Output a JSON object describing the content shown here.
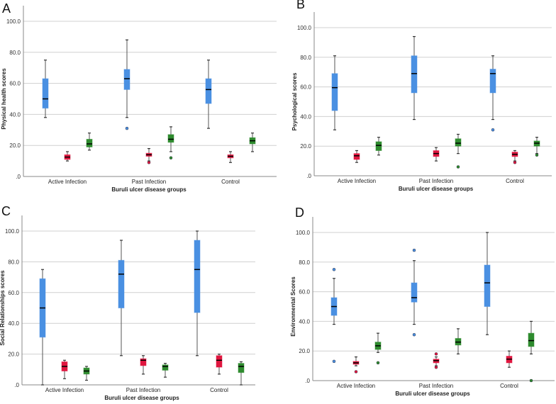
{
  "chart_data": [
    {
      "type": "box",
      "panel": "A",
      "ylabel": "Physical health scores",
      "xlabel": "Buruli ulcer disease groups",
      "ylim": [
        0,
        100
      ],
      "yticks": [
        ".0",
        "20.0",
        "40.0",
        "60.0",
        "80.0",
        "100.0"
      ],
      "grid": true,
      "categories": [
        "Active Infection",
        "Past Infection",
        "Control"
      ],
      "series_colors": [
        "#4a90e2",
        "#e0163f",
        "#2e8b2e"
      ],
      "groups": [
        [
          {
            "min": 38,
            "q1": 44,
            "median": 50,
            "q3": 63,
            "max": 75,
            "outliers": []
          },
          {
            "min": 10,
            "q1": 11,
            "median": 12.5,
            "q3": 14,
            "max": 16,
            "outliers": []
          },
          {
            "min": 17,
            "q1": 19,
            "median": 21,
            "q3": 24,
            "max": 28,
            "outliers": []
          }
        ],
        [
          {
            "min": 38,
            "q1": 56,
            "median": 63,
            "q3": 69,
            "max": 88,
            "outliers": [
              31
            ]
          },
          {
            "min": 10,
            "q1": 13,
            "median": 14,
            "q3": 15,
            "max": 18,
            "outliers": [
              9
            ]
          },
          {
            "min": 16,
            "q1": 22,
            "median": 24,
            "q3": 27,
            "max": 32,
            "outliers": [
              12
            ]
          }
        ],
        [
          {
            "min": 31,
            "q1": 47,
            "median": 56,
            "q3": 63,
            "max": 75,
            "outliers": []
          },
          {
            "min": 9,
            "q1": 12,
            "median": 13,
            "q3": 14,
            "max": 16,
            "outliers": []
          },
          {
            "min": 16,
            "q1": 21,
            "median": 23,
            "q3": 25,
            "max": 28,
            "outliers": []
          }
        ]
      ]
    },
    {
      "type": "box",
      "panel": "B",
      "ylabel": "Psychological scores",
      "xlabel": "Buruli ulcer disease groups",
      "ylim": [
        0,
        100
      ],
      "yticks": [
        ".0",
        "20.0",
        "40.0",
        "60.0",
        "80.0",
        "100.0"
      ],
      "grid": true,
      "categories": [
        "Active Infection",
        "Past Infection",
        "Control"
      ],
      "series_colors": [
        "#4a90e2",
        "#e0163f",
        "#2e8b2e"
      ],
      "groups": [
        [
          {
            "min": 31,
            "q1": 44,
            "median": 59.5,
            "q3": 69,
            "max": 81,
            "outliers": []
          },
          {
            "min": 9,
            "q1": 11,
            "median": 13.5,
            "q3": 15,
            "max": 17,
            "outliers": []
          },
          {
            "min": 14,
            "q1": 17,
            "median": 20.5,
            "q3": 23,
            "max": 26,
            "outliers": []
          }
        ],
        [
          {
            "min": 38,
            "q1": 56,
            "median": 69,
            "q3": 81,
            "max": 94,
            "outliers": []
          },
          {
            "min": 10,
            "q1": 13,
            "median": 15,
            "q3": 17,
            "max": 19,
            "outliers": []
          },
          {
            "min": 15,
            "q1": 20,
            "median": 22,
            "q3": 25,
            "max": 28,
            "outliers": [
              6
            ]
          }
        ],
        [
          {
            "min": 38,
            "q1": 56,
            "median": 69,
            "q3": 72,
            "max": 81,
            "outliers": [
              31
            ]
          },
          {
            "min": 10,
            "q1": 13,
            "median": 14.5,
            "q3": 16,
            "max": 17,
            "outliers": [
              9
            ]
          },
          {
            "min": 15,
            "q1": 20,
            "median": 22,
            "q3": 23.5,
            "max": 26,
            "outliers": [
              14
            ]
          }
        ]
      ]
    },
    {
      "type": "box",
      "panel": "C",
      "ylabel": "Social Relationships scores",
      "xlabel": "Buruli ulcer disease groups",
      "ylim": [
        0,
        100
      ],
      "yticks": [
        ".0",
        "20.0",
        "40.0",
        "60.0",
        "80.0",
        "100.0"
      ],
      "grid": true,
      "categories": [
        "Active Infection",
        "Past Infection",
        "Control"
      ],
      "series_colors": [
        "#4a90e2",
        "#e0163f",
        "#2e8b2e"
      ],
      "groups": [
        [
          {
            "min": 0,
            "q1": 31,
            "median": 50,
            "q3": 69,
            "max": 75,
            "outliers": []
          },
          {
            "min": 4,
            "q1": 9,
            "median": 12,
            "q3": 15,
            "max": 16,
            "outliers": []
          },
          {
            "min": 3,
            "q1": 7,
            "median": 9,
            "q3": 11,
            "max": 12,
            "outliers": []
          }
        ],
        [
          {
            "min": 19,
            "q1": 50,
            "median": 72,
            "q3": 81,
            "max": 94,
            "outliers": []
          },
          {
            "min": 7,
            "q1": 12.5,
            "median": 16,
            "q3": 17,
            "max": 19,
            "outliers": []
          },
          {
            "min": 5,
            "q1": 9.5,
            "median": 12,
            "q3": 13,
            "max": 14,
            "outliers": []
          }
        ],
        [
          {
            "min": 19,
            "q1": 47,
            "median": 75,
            "q3": 94,
            "max": 100,
            "outliers": []
          },
          {
            "min": 7,
            "q1": 11.5,
            "median": 16,
            "q3": 19,
            "max": 20,
            "outliers": []
          },
          {
            "min": 0,
            "q1": 8,
            "median": 12,
            "q3": 14,
            "max": 15,
            "outliers": []
          }
        ]
      ]
    },
    {
      "type": "box",
      "panel": "D",
      "ylabel": "Environmental Scores",
      "xlabel": "Buruli ulcer disease groups",
      "ylim": [
        0,
        100
      ],
      "yticks": [
        ".0",
        "20.0",
        "40.0",
        "60.0",
        "80.0",
        "100.0"
      ],
      "grid": true,
      "categories": [
        "Active Infection",
        "Past Infection",
        "Control"
      ],
      "series_colors": [
        "#4a90e2",
        "#e0163f",
        "#2e8b2e"
      ],
      "groups": [
        [
          {
            "min": 38,
            "q1": 44,
            "median": 50,
            "q3": 56,
            "max": 69,
            "outliers": [
              75,
              13
            ]
          },
          {
            "min": 10,
            "q1": 11,
            "median": 12,
            "q3": 13,
            "max": 16,
            "outliers": [
              6
            ]
          },
          {
            "min": 19,
            "q1": 21,
            "median": 23.5,
            "q3": 26,
            "max": 32,
            "outliers": [
              12
            ]
          }
        ],
        [
          {
            "min": 38,
            "q1": 53,
            "median": 56,
            "q3": 66,
            "max": 81,
            "outliers": [
              88,
              31
            ]
          },
          {
            "min": 10,
            "q1": 12,
            "median": 13.5,
            "q3": 14.5,
            "max": 16,
            "outliers": [
              18,
              9
            ]
          },
          {
            "min": 18,
            "q1": 24,
            "median": 26,
            "q3": 28.5,
            "max": 35,
            "outliers": []
          }
        ],
        [
          {
            "min": 31,
            "q1": 50,
            "median": 66,
            "q3": 78,
            "max": 100,
            "outliers": []
          },
          {
            "min": 9,
            "q1": 12,
            "median": 14.5,
            "q3": 16.5,
            "max": 20,
            "outliers": []
          },
          {
            "min": 18,
            "q1": 23,
            "median": 27,
            "q3": 32,
            "max": 40,
            "outliers": [
              0
            ]
          }
        ]
      ]
    }
  ]
}
